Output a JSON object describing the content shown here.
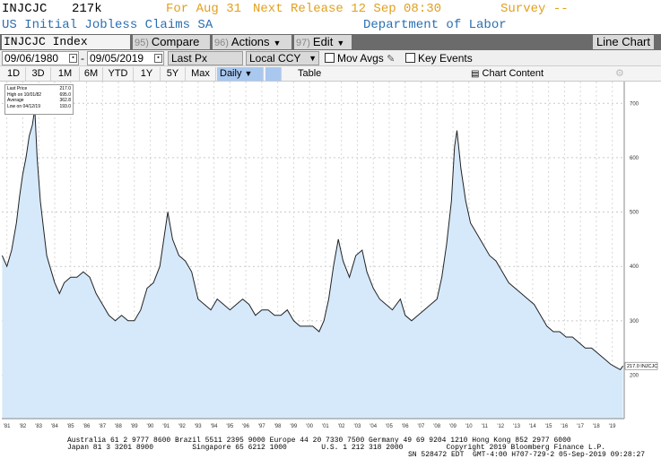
{
  "header": {
    "ticker": "INJCJC",
    "value": "217k",
    "for": "For Aug 31",
    "next_release": "Next Release 12 Sep 08:30",
    "survey": "Survey --",
    "description": "US Initial Jobless Claims SA",
    "source": "Department of Labor",
    "colors": {
      "ticker": "#000000",
      "for": "#e0a020",
      "next_release": "#e0a020",
      "survey": "#e0a020",
      "description": "#2a6fb0"
    }
  },
  "toolbar": {
    "security": "INJCJC Index",
    "compare_num": "95)",
    "compare": "Compare",
    "actions_num": "96)",
    "actions": "Actions",
    "edit_num": "97)",
    "edit": "Edit",
    "chart_type": "Line Chart"
  },
  "range": {
    "start_date": "09/06/1980",
    "end_date": "09/05/2019",
    "field": "Last Px",
    "currency": "Local CCY",
    "mov_avgs": "Mov Avgs",
    "key_events": "Key Events"
  },
  "periods": {
    "items": [
      "1D",
      "3D",
      "1M",
      "6M",
      "YTD",
      "1Y",
      "5Y",
      "Max"
    ],
    "frequency": "Daily",
    "table": "Table",
    "chart_content": "Chart Content"
  },
  "legend": {
    "last_label": "Last Price",
    "last_value": "217.0",
    "high_label": "High on 10/01/82",
    "high_value": "695.0",
    "avg_label": "Average",
    "avg_value": "362.8",
    "low_label": "Low on 04/12/19",
    "low_value": "193.0"
  },
  "chart_data": {
    "type": "area",
    "x_ticks": [
      "'81",
      "'82",
      "'83",
      "'84",
      "'85",
      "'86",
      "'87",
      "'88",
      "'89",
      "'90",
      "'91",
      "'92",
      "'93",
      "'94",
      "'95",
      "'96",
      "'97",
      "'98",
      "'99",
      "'00",
      "'01",
      "'02",
      "'03",
      "'04",
      "'05",
      "'06",
      "'07",
      "'08",
      "'09",
      "'10",
      "'11",
      "'12",
      "'13",
      "'14",
      "'15",
      "'16",
      "'17",
      "'18",
      "'19"
    ],
    "y_ticks": [
      200,
      300,
      400,
      500,
      600,
      700
    ],
    "ylim": [
      120,
      740
    ],
    "last_label": "217.0 INJCJC",
    "fill_color": "#d6e9fb",
    "line_color": "#222222",
    "grid": "dashed",
    "series": [
      {
        "x": [
          1980.7,
          1981.0,
          1981.3,
          1981.6,
          1981.8,
          1982.0,
          1982.2,
          1982.4,
          1982.6,
          1982.75,
          1982.9,
          1983.1,
          1983.3,
          1983.5,
          1983.7,
          1984.0,
          1984.3,
          1984.6,
          1985.0,
          1985.4,
          1985.8,
          1986.2,
          1986.6,
          1987.0,
          1987.4,
          1987.8,
          1988.2,
          1988.6,
          1989.0,
          1989.4,
          1989.8,
          1990.2,
          1990.6,
          1990.9,
          1991.1,
          1991.4,
          1991.8,
          1992.2,
          1992.6,
          1993.0,
          1993.4,
          1993.8,
          1994.2,
          1994.6,
          1995.0,
          1995.4,
          1995.8,
          1996.2,
          1996.6,
          1997.0,
          1997.4,
          1997.8,
          1998.2,
          1998.6,
          1999.0,
          1999.4,
          1999.8,
          2000.2,
          2000.6,
          2000.9,
          2001.2,
          2001.5,
          2001.8,
          2002.1,
          2002.5,
          2002.9,
          2003.3,
          2003.6,
          2004.0,
          2004.4,
          2004.8,
          2005.2,
          2005.7,
          2006.0,
          2006.4,
          2006.8,
          2007.2,
          2007.6,
          2008.0,
          2008.3,
          2008.6,
          2008.9,
          2009.1,
          2009.25,
          2009.5,
          2009.8,
          2010.1,
          2010.5,
          2010.9,
          2011.3,
          2011.7,
          2012.1,
          2012.5,
          2012.9,
          2013.3,
          2013.7,
          2014.1,
          2014.5,
          2014.9,
          2015.3,
          2015.7,
          2016.1,
          2016.5,
          2016.9,
          2017.3,
          2017.7,
          2018.1,
          2018.5,
          2018.9,
          2019.2,
          2019.5,
          2019.67
        ],
        "y": [
          420,
          400,
          430,
          480,
          530,
          570,
          600,
          640,
          660,
          690,
          600,
          520,
          470,
          420,
          400,
          370,
          350,
          370,
          380,
          380,
          390,
          380,
          350,
          330,
          310,
          300,
          310,
          300,
          300,
          320,
          360,
          370,
          400,
          460,
          500,
          450,
          420,
          410,
          390,
          340,
          330,
          320,
          340,
          330,
          320,
          330,
          340,
          330,
          310,
          320,
          320,
          310,
          310,
          320,
          300,
          290,
          290,
          290,
          280,
          300,
          340,
          400,
          450,
          410,
          380,
          420,
          430,
          390,
          360,
          340,
          330,
          320,
          340,
          310,
          300,
          310,
          320,
          330,
          340,
          380,
          440,
          520,
          620,
          650,
          580,
          520,
          480,
          460,
          440,
          420,
          410,
          390,
          370,
          360,
          350,
          340,
          330,
          310,
          290,
          280,
          280,
          270,
          270,
          260,
          250,
          250,
          240,
          230,
          220,
          215,
          210,
          217
        ]
      }
    ]
  },
  "footer": {
    "line1": "Australia 61 2 9777 8600 Brazil 5511 2395 9000 Europe 44 20 7330 7500 Germany 49 69 9204 1210 Hong Kong 852 2977 6000",
    "line2": "Japan 81 3 3201 8900         Singapore 65 6212 1000        U.S. 1 212 318 2000          Copyright 2019 Bloomberg Finance L.P.",
    "line3": "SN 528472 EDT  GMT-4:00 H707-729-2 05-Sep-2019 09:28:27"
  }
}
